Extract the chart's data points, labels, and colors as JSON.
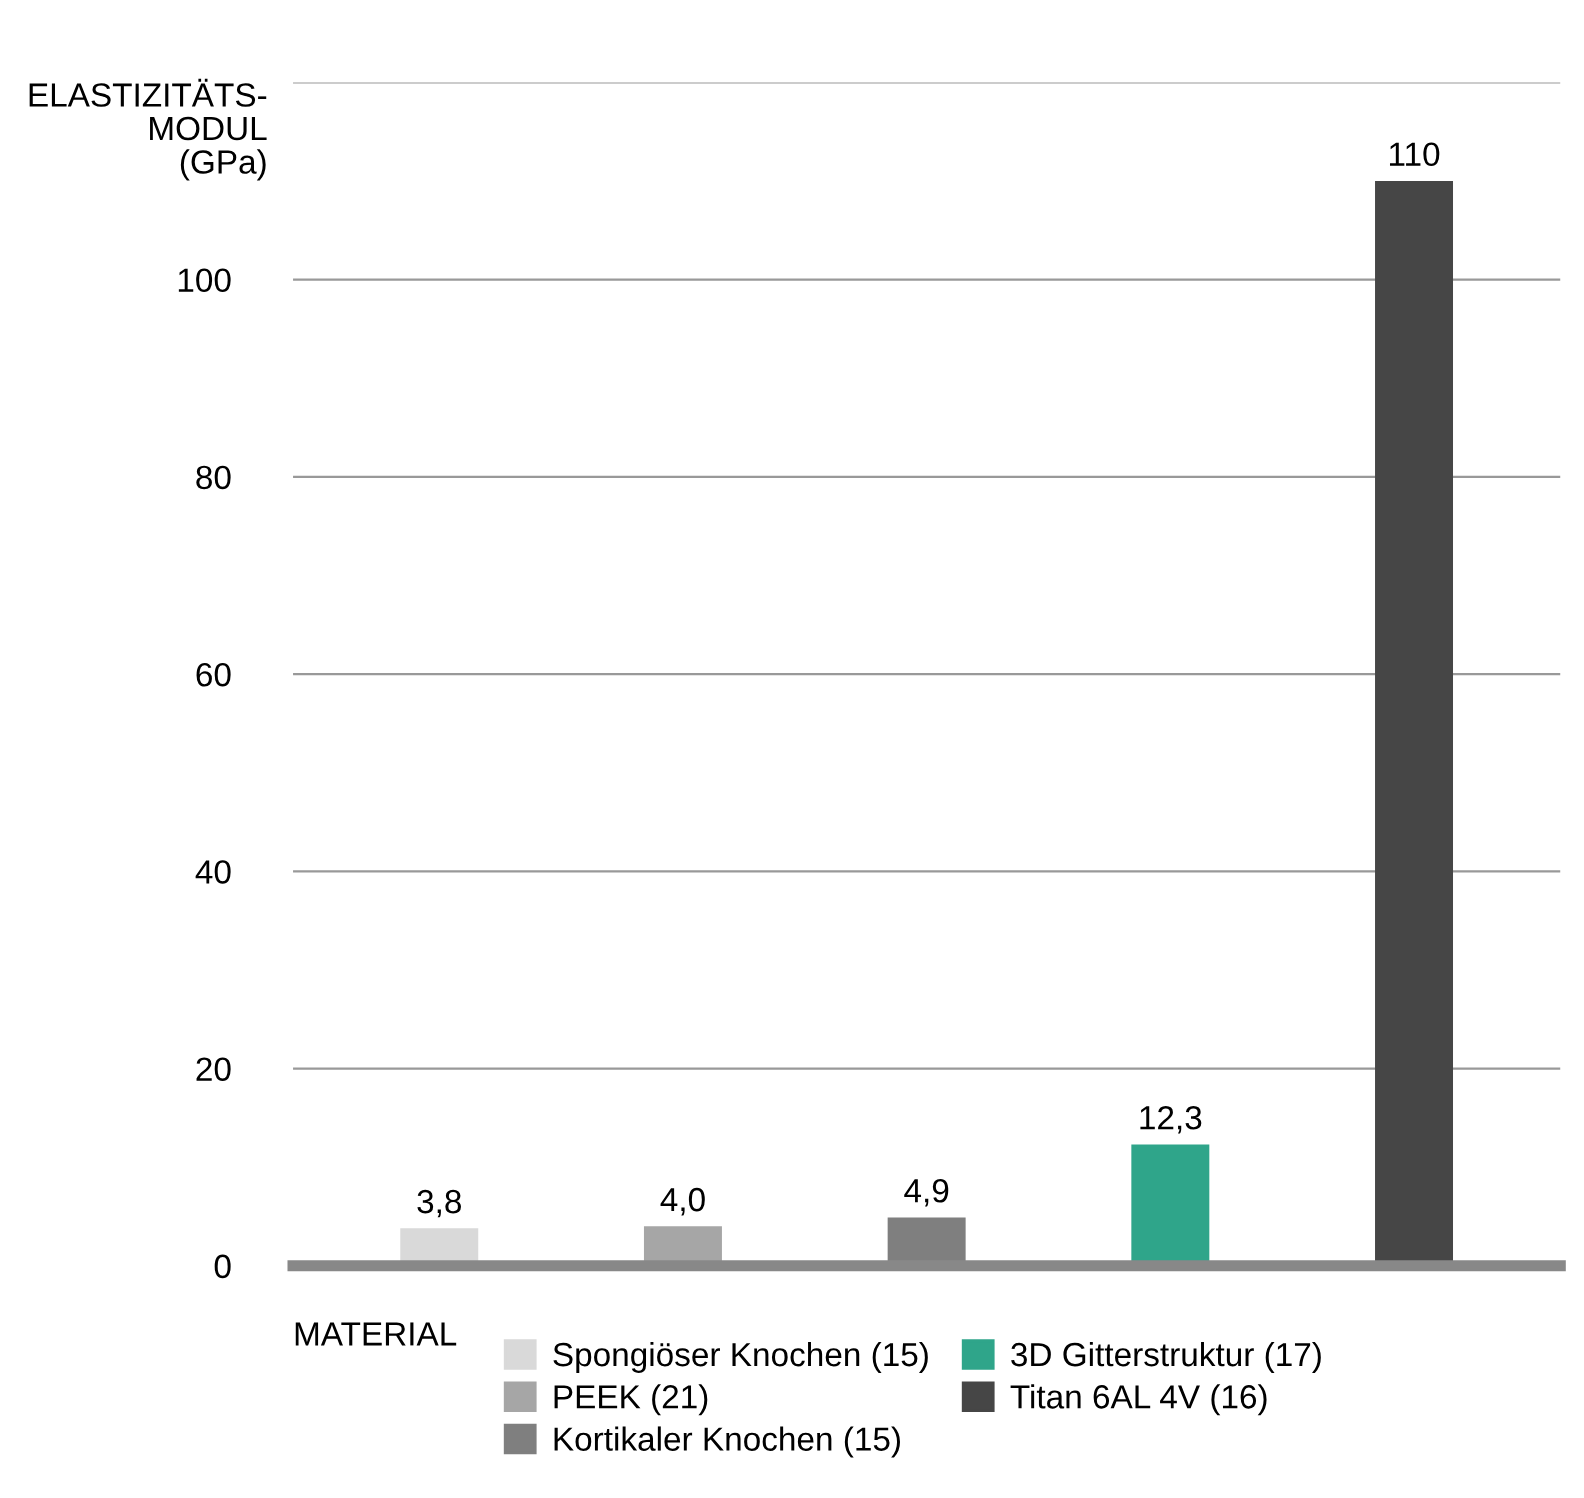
{
  "chart_data": {
    "type": "bar",
    "ylabel": "ELASTIZITÄTS-\nMODUL\n(GPa)",
    "legend_title": "MATERIAL",
    "categories": [
      null,
      null,
      null,
      null,
      null
    ],
    "series": [
      {
        "name": "Spongiöser Knochen (15)",
        "color": "#d9d9d9",
        "values": [
          3.8,
          null,
          null,
          null,
          null
        ],
        "value_labels": [
          "3,8",
          null,
          null,
          null,
          null
        ]
      },
      {
        "name": "PEEK (21)",
        "color": "#a6a6a6",
        "values": [
          null,
          4.0,
          null,
          null,
          null
        ],
        "value_labels": [
          null,
          "4,0",
          null,
          null,
          null
        ]
      },
      {
        "name": "Kortikaler Knochen (15)",
        "color": "#7f7f7f",
        "values": [
          null,
          null,
          4.9,
          null,
          null
        ],
        "value_labels": [
          null,
          null,
          "4,9",
          null,
          null
        ]
      },
      {
        "name": "3D Gitterstruktur (17)",
        "color": "#2fa58a",
        "values": [
          null,
          null,
          null,
          12.3,
          null
        ],
        "value_labels": [
          null,
          null,
          null,
          "12,3",
          null
        ]
      },
      {
        "name": "Titan 6AL 4V (16)",
        "color": "#464646",
        "values": [
          null,
          null,
          null,
          null,
          110
        ],
        "value_labels": [
          null,
          null,
          null,
          null,
          "110"
        ]
      }
    ],
    "ylim": [
      0,
      120
    ],
    "yticks": [
      0,
      20,
      40,
      60,
      80,
      100,
      {
        "value": 120,
        "label": null
      }
    ],
    "grid": "y",
    "legend": "bottom"
  }
}
